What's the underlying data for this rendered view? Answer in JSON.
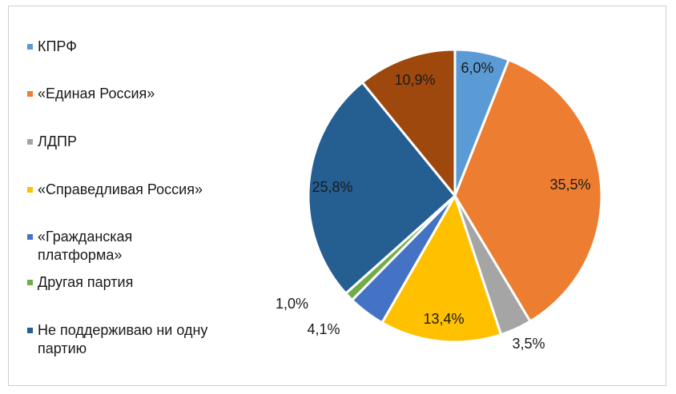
{
  "chart_data": {
    "type": "pie",
    "title": "",
    "categories": [
      "КПРФ",
      "«Единая Россия»",
      "ЛДПР",
      "«Справедливая Россия»",
      "«Гражданская платформа»",
      "Другая партия",
      "Не поддерживаю ни одну партию",
      ""
    ],
    "values": [
      6.0,
      35.5,
      3.5,
      13.4,
      4.1,
      1.0,
      25.8,
      10.9
    ],
    "value_labels": [
      "6,0%",
      "35,5%",
      "3,5%",
      "13,4%",
      "4,1%",
      "1,0%",
      "25,8%",
      "10,9%"
    ],
    "colors": [
      "#5B9BD5",
      "#ED7D31",
      "#A5A5A5",
      "#FFC000",
      "#4472C4",
      "#70AD47",
      "#255E91",
      "#9E480E"
    ],
    "legend_position": "left"
  }
}
